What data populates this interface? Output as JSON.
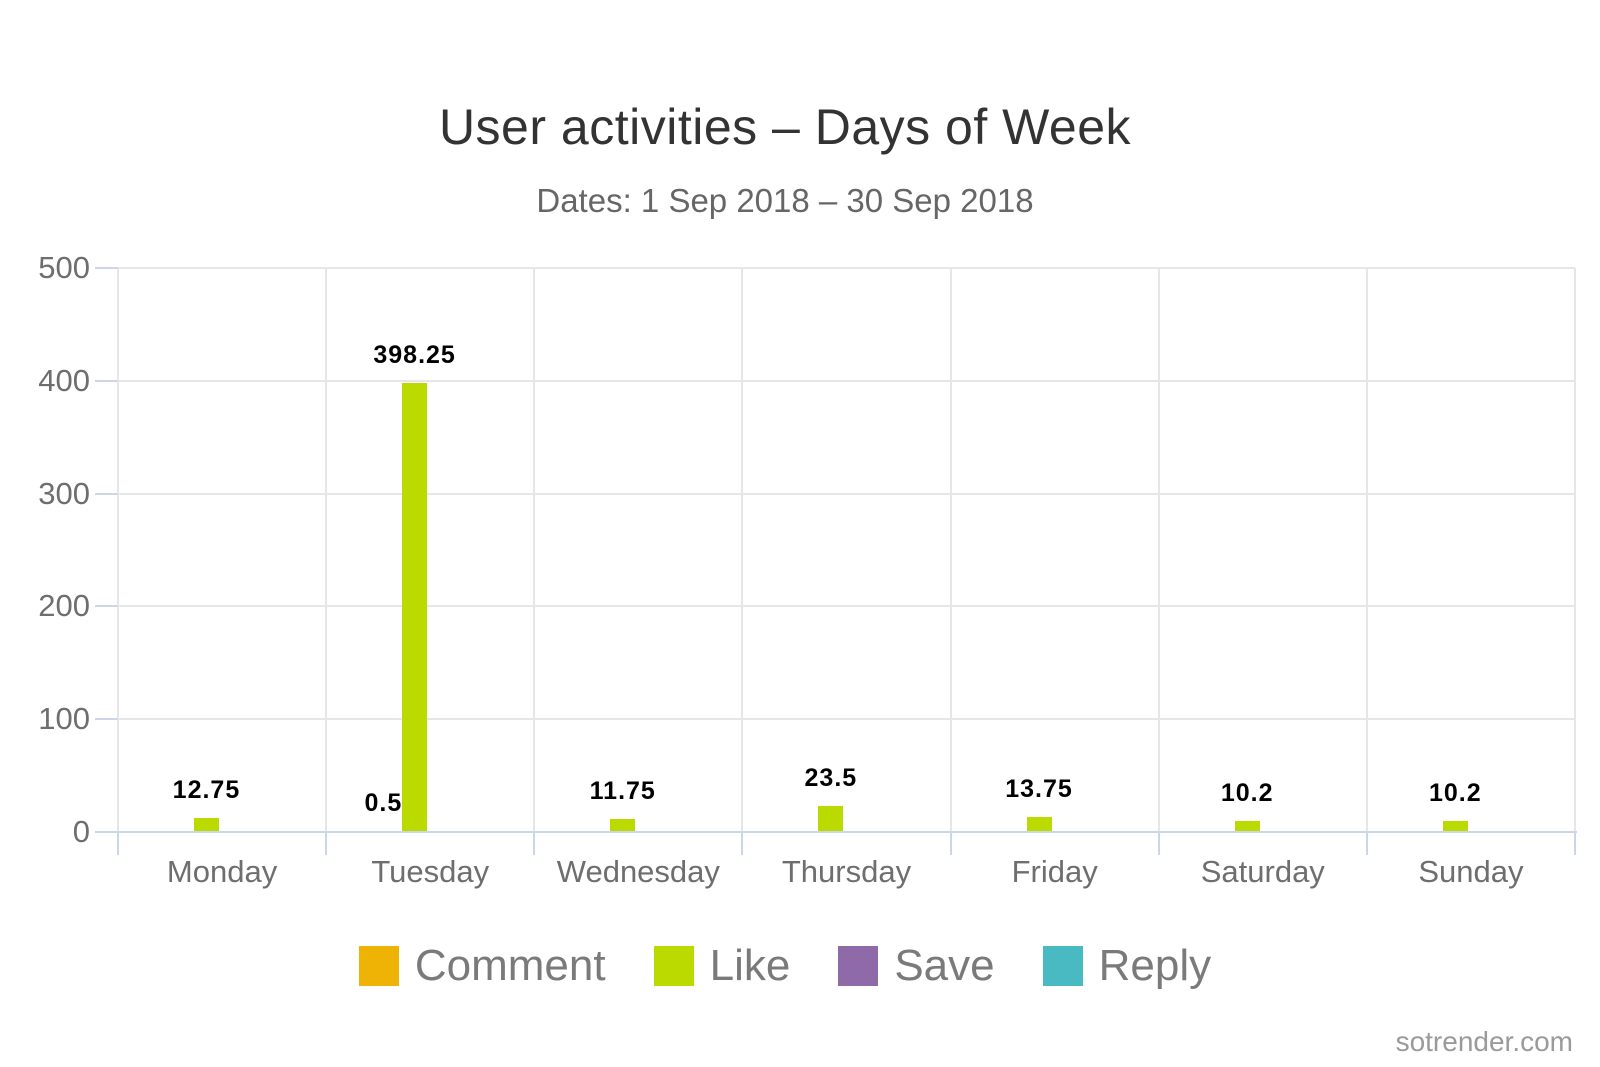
{
  "page": {
    "watermark": "sotrender.com"
  },
  "colors": {
    "axis_line": "#ccd6eb",
    "gridline": "#e6e6e6",
    "title_text": "#333333",
    "subtitle_text": "#666666",
    "axis_label_text": "#6e6e6e",
    "legend_text": "#7a7a7a",
    "data_label_text": "#000000"
  },
  "chart_data": {
    "type": "bar",
    "title": "User activities – Days of Week",
    "subtitle": "Dates: 1 Sep 2018 – 30 Sep 2018",
    "categories": [
      "Monday",
      "Tuesday",
      "Wednesday",
      "Thursday",
      "Friday",
      "Saturday",
      "Sunday"
    ],
    "series": [
      {
        "name": "Comment",
        "color": "#efb306",
        "values": [
          null,
          0.5,
          null,
          null,
          null,
          null,
          null
        ]
      },
      {
        "name": "Like",
        "color": "#bbdb00",
        "values": [
          12.75,
          398.25,
          11.75,
          23.5,
          13.75,
          10.2,
          10.2
        ]
      },
      {
        "name": "Save",
        "color": "#8e6ba8",
        "values": [
          null,
          null,
          null,
          null,
          null,
          null,
          null
        ]
      },
      {
        "name": "Reply",
        "color": "#49b9c2",
        "values": [
          null,
          null,
          null,
          null,
          null,
          null,
          null
        ]
      }
    ],
    "ylabel": "",
    "xlabel": "",
    "ylim": [
      0,
      500
    ],
    "yticks": [
      0,
      100,
      200,
      300,
      400,
      500
    ],
    "grid": true,
    "legend_position": "bottom"
  }
}
